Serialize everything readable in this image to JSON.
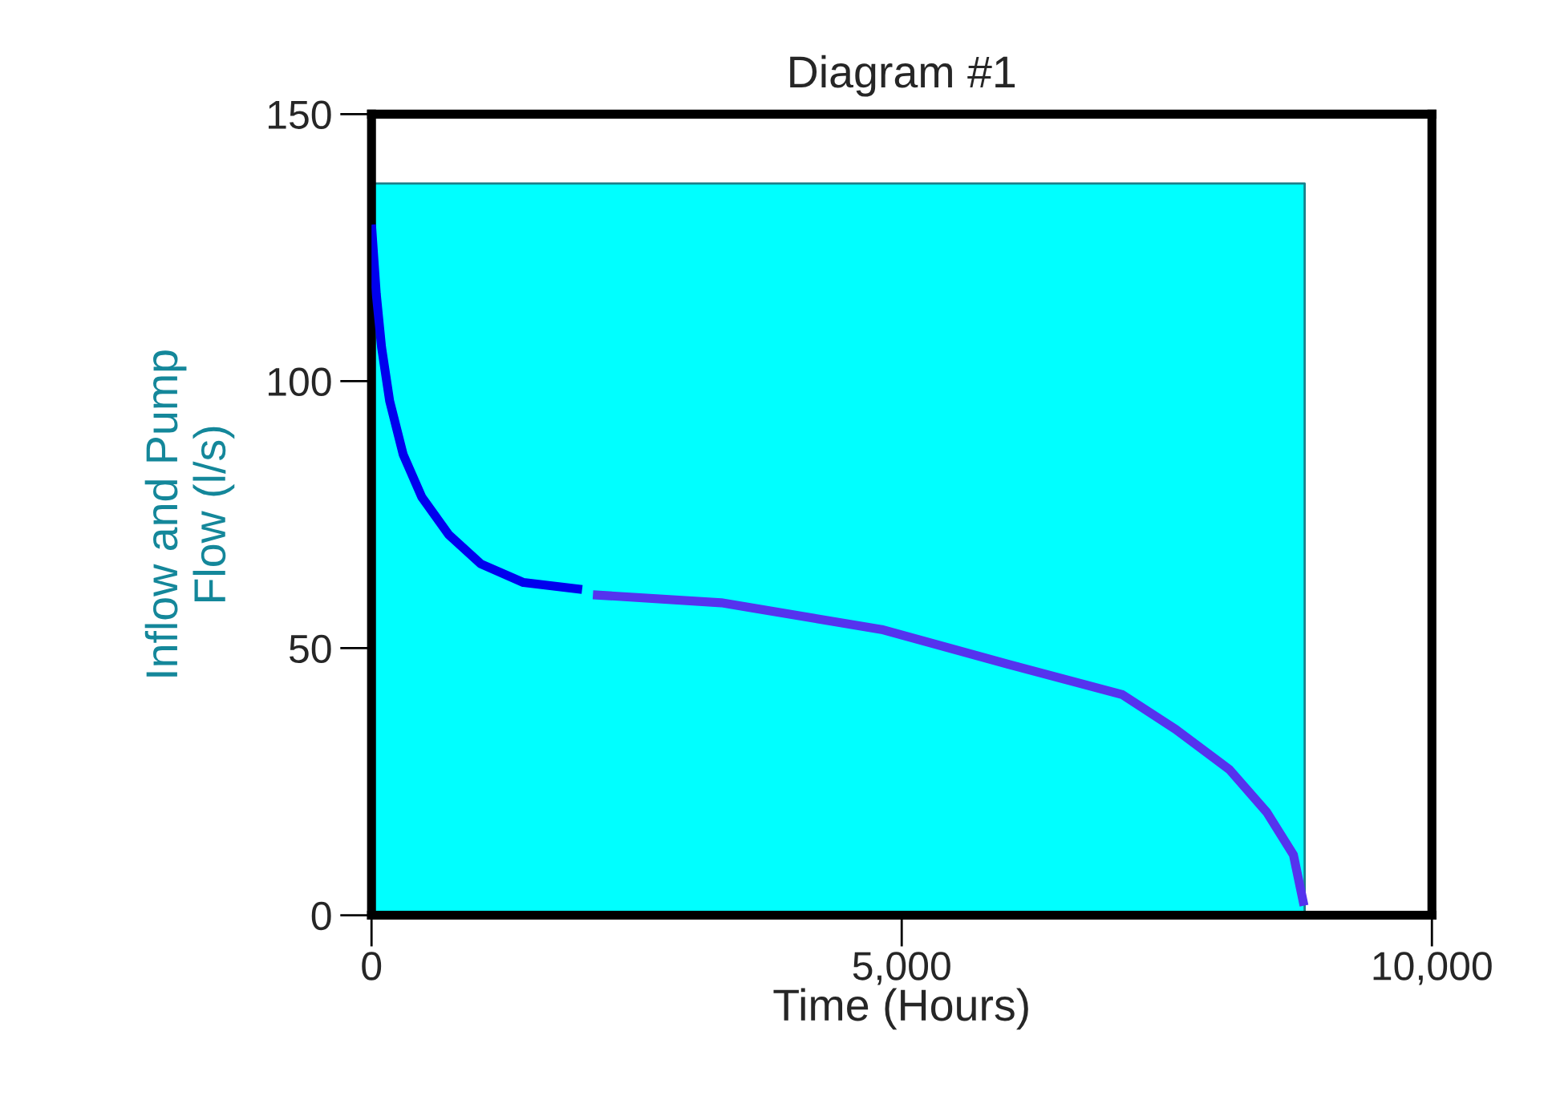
{
  "chart_data": {
    "type": "line",
    "title": "Diagram #1",
    "xlabel": "Time (Hours)",
    "ylabel": "Inflow and Pump\nFlow (l/s)",
    "xlim": [
      0,
      10000
    ],
    "ylim": [
      0,
      150
    ],
    "xticks": [
      {
        "value": 0,
        "label": "0"
      },
      {
        "value": 5000,
        "label": "5,000"
      },
      {
        "value": 10000,
        "label": "10,000"
      }
    ],
    "yticks": [
      0,
      50,
      100,
      150
    ],
    "grid": false,
    "series": [
      {
        "type": "area",
        "color": "#00ffff",
        "x": [
          0,
          8800
        ],
        "values": [
          137,
          137
        ]
      },
      {
        "color": "#0000ee",
        "x": [
          0,
          45,
          95,
          171,
          298,
          474,
          726,
          1029,
          1433,
          1986
        ],
        "values": [
          129.3,
          116.3,
          106.3,
          96.3,
          86.3,
          78.3,
          71.3,
          65.8,
          62.3,
          61
        ]
      },
      {
        "color": "#5533ee",
        "x": [
          2088,
          3298,
          4811,
          6000,
          7080,
          7584,
          8089,
          8442,
          8694,
          8794
        ],
        "values": [
          60,
          58.5,
          53.5,
          47,
          41.3,
          34.8,
          27.3,
          19.3,
          11.3,
          1.8
        ]
      }
    ]
  }
}
